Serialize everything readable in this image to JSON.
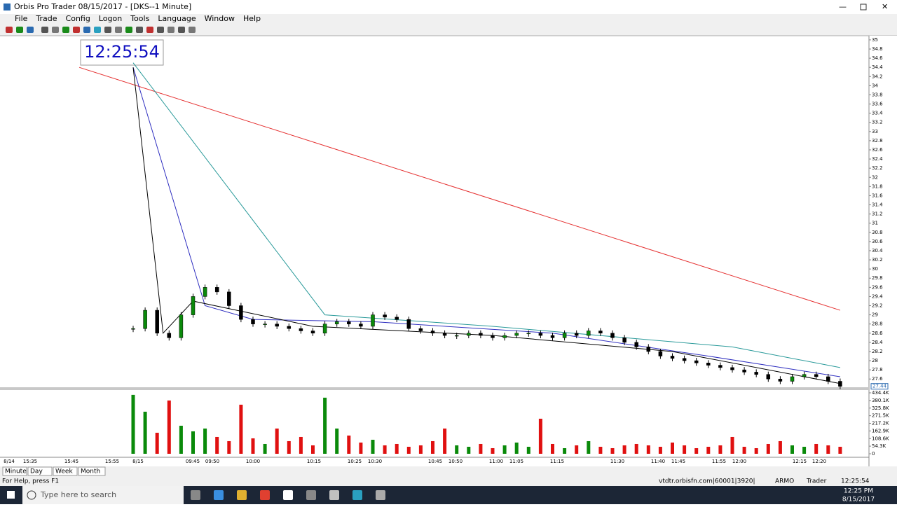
{
  "window": {
    "title": "Orbis Pro Trader 08/15/2017 - [DKS--1 Minute]",
    "menu": [
      "File",
      "Trade",
      "Config",
      "Logon",
      "Tools",
      "Language",
      "Window",
      "Help"
    ]
  },
  "clock": "12:25:54",
  "chart_data": {
    "type": "candlestick",
    "close": [
      28.7,
      29.1,
      28.6,
      28.5,
      29.0,
      29.4,
      29.6,
      29.5,
      29.2,
      28.9,
      28.8,
      28.8,
      28.75,
      28.7,
      28.65,
      28.6,
      28.8,
      28.85,
      28.8,
      28.75,
      29.0,
      28.95,
      28.9,
      28.7,
      28.65,
      28.6,
      28.55,
      28.55,
      28.6,
      28.55,
      28.5,
      28.55,
      28.6,
      28.6,
      28.55,
      28.5,
      28.6,
      28.55,
      28.65,
      28.6,
      28.5,
      28.4,
      28.3,
      28.2,
      28.1,
      28.05,
      28.0,
      27.95,
      27.9,
      27.85,
      27.8,
      27.75,
      27.7,
      27.6,
      27.55,
      27.65,
      27.7,
      27.65,
      27.55,
      27.44
    ],
    "volume": [
      420000,
      300000,
      150000,
      380000,
      200000,
      160000,
      180000,
      120000,
      90000,
      350000,
      110000,
      70000,
      180000,
      90000,
      120000,
      60000,
      400000,
      180000,
      130000,
      80000,
      100000,
      60000,
      70000,
      50000,
      60000,
      90000,
      180000,
      60000,
      50000,
      70000,
      40000,
      60000,
      80000,
      50000,
      250000,
      70000,
      40000,
      60000,
      90000,
      50000,
      40000,
      60000,
      70000,
      60000,
      50000,
      80000,
      60000,
      40000,
      50000,
      60000,
      120000,
      50000,
      40000,
      70000,
      90000,
      60000,
      50000,
      70000,
      60000,
      50000
    ],
    "ylim": [
      27.42,
      35.06
    ],
    "yticks": [
      35,
      34.8,
      34.6,
      34.4,
      34.2,
      34,
      33.8,
      33.6,
      33.4,
      33.2,
      33,
      32.8,
      32.6,
      32.4,
      32.2,
      32,
      31.8,
      31.6,
      31.4,
      31.2,
      31,
      30.8,
      30.6,
      30.4,
      30.2,
      30,
      29.8,
      29.6,
      29.4,
      29.2,
      29,
      28.8,
      28.6,
      28.4,
      28.2,
      28,
      27.8,
      27.6
    ],
    "last_price": 27.44,
    "volume_lim": [
      0,
      434400
    ],
    "volume_ticks": [
      {
        "value": 434400,
        "label": "434.4K"
      },
      {
        "value": 380100,
        "label": "380.1K"
      },
      {
        "value": 325800,
        "label": "325.8K"
      },
      {
        "value": 271500,
        "label": "271.5K"
      },
      {
        "value": 217200,
        "label": "217.2K"
      },
      {
        "value": 162900,
        "label": "162.9K"
      },
      {
        "value": 108600,
        "label": "108.6K"
      },
      {
        "value": 54300,
        "label": "54.3K"
      },
      0
    ],
    "time_labels": [
      "8/14",
      "15:35",
      "15:45",
      "15:55",
      "8/15",
      "09:45",
      "09:50",
      "10:00",
      "10:15",
      "10:25",
      "10:30",
      "10:45",
      "10:50",
      "11:00",
      "11:05",
      "11:15",
      "11:30",
      "11:40",
      "11:45",
      "11:55",
      "12:00",
      "12:15",
      "12:20"
    ],
    "ma_lines": [
      {
        "color": "#e53030",
        "x": [
          -4.5,
          59
        ],
        "values": [
          34.4,
          29.1
        ]
      },
      {
        "color": "#2a9a9a",
        "x": [
          0,
          16,
          30,
          50,
          59
        ],
        "values": [
          34.5,
          29.0,
          28.75,
          28.3,
          27.85
        ]
      },
      {
        "color": "#3030c0",
        "x": [
          0,
          6,
          10,
          20,
          35,
          48,
          59
        ],
        "values": [
          34.4,
          29.2,
          28.9,
          28.85,
          28.6,
          28.1,
          27.65
        ]
      },
      {
        "color": "#000000",
        "x": [
          0,
          2.5,
          5,
          15,
          30,
          45,
          59
        ],
        "values": [
          34.4,
          28.6,
          29.3,
          28.75,
          28.55,
          28.2,
          27.5
        ]
      }
    ],
    "up_color": "#0a8a0a",
    "down_color": "#e01010"
  },
  "tabs": [
    "Minute",
    "Day",
    "Week",
    "Month"
  ],
  "status_bar": {
    "help": "For Help, press F1",
    "server": "vtdtr.orbisfn.com|60001|3920|",
    "account": "ARMO",
    "role": "Trader",
    "time": "12:25:54"
  },
  "taskbar": {
    "search": "Type here to search",
    "time": "12:25 PM",
    "date": "8/15/2017"
  }
}
